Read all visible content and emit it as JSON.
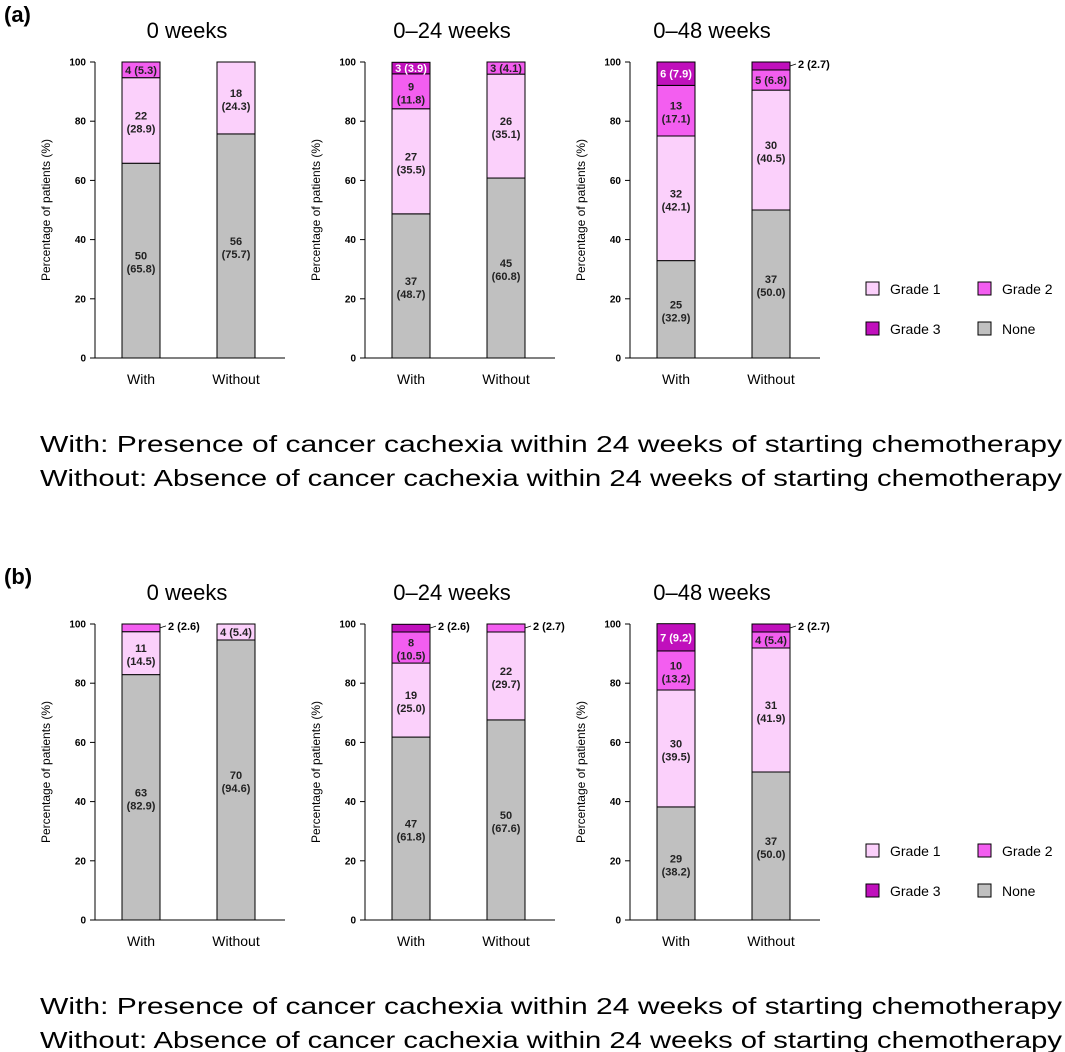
{
  "panels": [
    {
      "label": "(a)",
      "footnotes": [
        "With: Presence of cancer cachexia within 24 weeks of starting chemotherapy",
        "Without: Absence of cancer cachexia within 24 weeks of starting chemotherapy"
      ],
      "legend": [
        {
          "name": "Grade 1",
          "color": "#fbd0fb"
        },
        {
          "name": "Grade 2",
          "color": "#f35ef0"
        },
        {
          "name": "Grade 3",
          "color": "#c010bc"
        },
        {
          "name": "None",
          "color": "#c0c0c0"
        }
      ]
    },
    {
      "label": "(b)",
      "footnotes": [
        "With: Presence of cancer cachexia within 24 weeks of starting chemotherapy",
        "Without: Absence of cancer cachexia within 24 weeks of starting chemotherapy"
      ],
      "legend": [
        {
          "name": "Grade 1",
          "color": "#fbd0fb"
        },
        {
          "name": "Grade 2",
          "color": "#f35ef0"
        },
        {
          "name": "Grade 3",
          "color": "#c010bc"
        },
        {
          "name": "None",
          "color": "#c0c0c0"
        }
      ]
    }
  ],
  "chart_data": [
    {
      "panel": "(a)",
      "type": "bar",
      "stacked": true,
      "title": "0 weeks",
      "xlabel": "",
      "ylabel": "Percentage of patients (%)",
      "ylim": [
        0,
        100
      ],
      "yticks": [
        0,
        20,
        40,
        60,
        80,
        100
      ],
      "categories": [
        "With",
        "Without"
      ],
      "series": [
        {
          "name": "None",
          "color": "#c0c0c0",
          "values": [
            65.8,
            75.7
          ],
          "labels": [
            [
              "50",
              "(65.8)"
            ],
            [
              "56",
              "(75.7)"
            ]
          ]
        },
        {
          "name": "Grade 1",
          "color": "#fbd0fb",
          "values": [
            28.9,
            24.3
          ],
          "labels": [
            [
              "22",
              "(28.9)"
            ],
            [
              "18",
              "(24.3)"
            ]
          ]
        },
        {
          "name": "Grade 2",
          "color": "#f35ef0",
          "values": [
            5.3,
            0
          ],
          "labels": [
            [
              "4 (5.3)"
            ],
            []
          ]
        },
        {
          "name": "Grade 3",
          "color": "#c010bc",
          "values": [
            0,
            0
          ],
          "labels": [
            [],
            []
          ]
        }
      ]
    },
    {
      "panel": "(a)",
      "type": "bar",
      "stacked": true,
      "title": "0–24 weeks",
      "xlabel": "",
      "ylabel": "Percentage of patients (%)",
      "ylim": [
        0,
        100
      ],
      "yticks": [
        0,
        20,
        40,
        60,
        80,
        100
      ],
      "categories": [
        "With",
        "Without"
      ],
      "series": [
        {
          "name": "None",
          "color": "#c0c0c0",
          "values": [
            48.7,
            60.8
          ],
          "labels": [
            [
              "37",
              "(48.7)"
            ],
            [
              "45",
              "(60.8)"
            ]
          ]
        },
        {
          "name": "Grade 1",
          "color": "#fbd0fb",
          "values": [
            35.5,
            35.1
          ],
          "labels": [
            [
              "27",
              "(35.5)"
            ],
            [
              "26",
              "(35.1)"
            ]
          ]
        },
        {
          "name": "Grade 2",
          "color": "#f35ef0",
          "values": [
            11.8,
            4.1
          ],
          "labels": [
            [
              "9",
              "(11.8)"
            ],
            [
              "3 (4.1)"
            ]
          ]
        },
        {
          "name": "Grade 3",
          "color": "#c010bc",
          "values": [
            3.9,
            0
          ],
          "labels": [
            [
              "3 (3.9)"
            ],
            []
          ]
        }
      ]
    },
    {
      "panel": "(a)",
      "type": "bar",
      "stacked": true,
      "title": "0–48 weeks",
      "xlabel": "",
      "ylabel": "Percentage of patients (%)",
      "ylim": [
        0,
        100
      ],
      "yticks": [
        0,
        20,
        40,
        60,
        80,
        100
      ],
      "categories": [
        "With",
        "Without"
      ],
      "series": [
        {
          "name": "None",
          "color": "#c0c0c0",
          "values": [
            32.9,
            50.0
          ],
          "labels": [
            [
              "25",
              "(32.9)"
            ],
            [
              "37",
              "(50.0)"
            ]
          ]
        },
        {
          "name": "Grade 1",
          "color": "#fbd0fb",
          "values": [
            42.1,
            40.5
          ],
          "labels": [
            [
              "32",
              "(42.1)"
            ],
            [
              "30",
              "(40.5)"
            ]
          ]
        },
        {
          "name": "Grade 2",
          "color": "#f35ef0",
          "values": [
            17.1,
            6.8
          ],
          "labels": [
            [
              "13",
              "(17.1)"
            ],
            [
              "5 (6.8)"
            ]
          ]
        },
        {
          "name": "Grade 3",
          "color": "#c010bc",
          "values": [
            7.9,
            2.7
          ],
          "labels": [
            [
              "6 (7.9)"
            ],
            [
              "2 (2.7)"
            ]
          ],
          "outside": [
            false,
            true
          ]
        }
      ]
    },
    {
      "panel": "(b)",
      "type": "bar",
      "stacked": true,
      "title": "0 weeks",
      "xlabel": "",
      "ylabel": "Percentage of patients (%)",
      "ylim": [
        0,
        100
      ],
      "yticks": [
        0,
        20,
        40,
        60,
        80,
        100
      ],
      "categories": [
        "With",
        "Without"
      ],
      "series": [
        {
          "name": "None",
          "color": "#c0c0c0",
          "values": [
            82.9,
            94.6
          ],
          "labels": [
            [
              "63",
              "(82.9)"
            ],
            [
              "70",
              "(94.6)"
            ]
          ]
        },
        {
          "name": "Grade 1",
          "color": "#fbd0fb",
          "values": [
            14.5,
            5.4
          ],
          "labels": [
            [
              "11",
              "(14.5)"
            ],
            [
              "4 (5.4)"
            ]
          ]
        },
        {
          "name": "Grade 2",
          "color": "#f35ef0",
          "values": [
            2.6,
            0
          ],
          "labels": [
            [
              "2 (2.6)"
            ],
            []
          ],
          "outside": [
            true,
            false
          ]
        },
        {
          "name": "Grade 3",
          "color": "#c010bc",
          "values": [
            0,
            0
          ],
          "labels": [
            [],
            []
          ]
        }
      ]
    },
    {
      "panel": "(b)",
      "type": "bar",
      "stacked": true,
      "title": "0–24 weeks",
      "xlabel": "",
      "ylabel": "Percentage of patients (%)",
      "ylim": [
        0,
        100
      ],
      "yticks": [
        0,
        20,
        40,
        60,
        80,
        100
      ],
      "categories": [
        "With",
        "Without"
      ],
      "series": [
        {
          "name": "None",
          "color": "#c0c0c0",
          "values": [
            61.8,
            67.6
          ],
          "labels": [
            [
              "47",
              "(61.8)"
            ],
            [
              "50",
              "(67.6)"
            ]
          ]
        },
        {
          "name": "Grade 1",
          "color": "#fbd0fb",
          "values": [
            25.0,
            29.7
          ],
          "labels": [
            [
              "19",
              "(25.0)"
            ],
            [
              "22",
              "(29.7)"
            ]
          ]
        },
        {
          "name": "Grade 2",
          "color": "#f35ef0",
          "values": [
            10.5,
            2.7
          ],
          "labels": [
            [
              "8",
              "(10.5)"
            ],
            [
              "2 (2.7)"
            ]
          ],
          "outside": [
            false,
            true
          ]
        },
        {
          "name": "Grade 3",
          "color": "#c010bc",
          "values": [
            2.6,
            0
          ],
          "labels": [
            [
              "2 (2.6)"
            ],
            []
          ],
          "outside": [
            true,
            false
          ]
        }
      ]
    },
    {
      "panel": "(b)",
      "type": "bar",
      "stacked": true,
      "title": "0–48 weeks",
      "xlabel": "",
      "ylabel": "Percentage of patients (%)",
      "ylim": [
        0,
        100
      ],
      "yticks": [
        0,
        20,
        40,
        60,
        80,
        100
      ],
      "categories": [
        "With",
        "Without"
      ],
      "series": [
        {
          "name": "None",
          "color": "#c0c0c0",
          "values": [
            38.2,
            50.0
          ],
          "labels": [
            [
              "29",
              "(38.2)"
            ],
            [
              "37",
              "(50.0)"
            ]
          ]
        },
        {
          "name": "Grade 1",
          "color": "#fbd0fb",
          "values": [
            39.5,
            41.9
          ],
          "labels": [
            [
              "30",
              "(39.5)"
            ],
            [
              "31",
              "(41.9)"
            ]
          ]
        },
        {
          "name": "Grade 2",
          "color": "#f35ef0",
          "values": [
            13.2,
            5.4
          ],
          "labels": [
            [
              "10",
              "(13.2)"
            ],
            [
              "4 (5.4)"
            ]
          ]
        },
        {
          "name": "Grade 3",
          "color": "#c010bc",
          "values": [
            9.2,
            2.7
          ],
          "labels": [
            [
              "7 (9.2)"
            ],
            [
              "2 (2.7)"
            ]
          ],
          "outside": [
            false,
            true
          ]
        }
      ]
    }
  ]
}
